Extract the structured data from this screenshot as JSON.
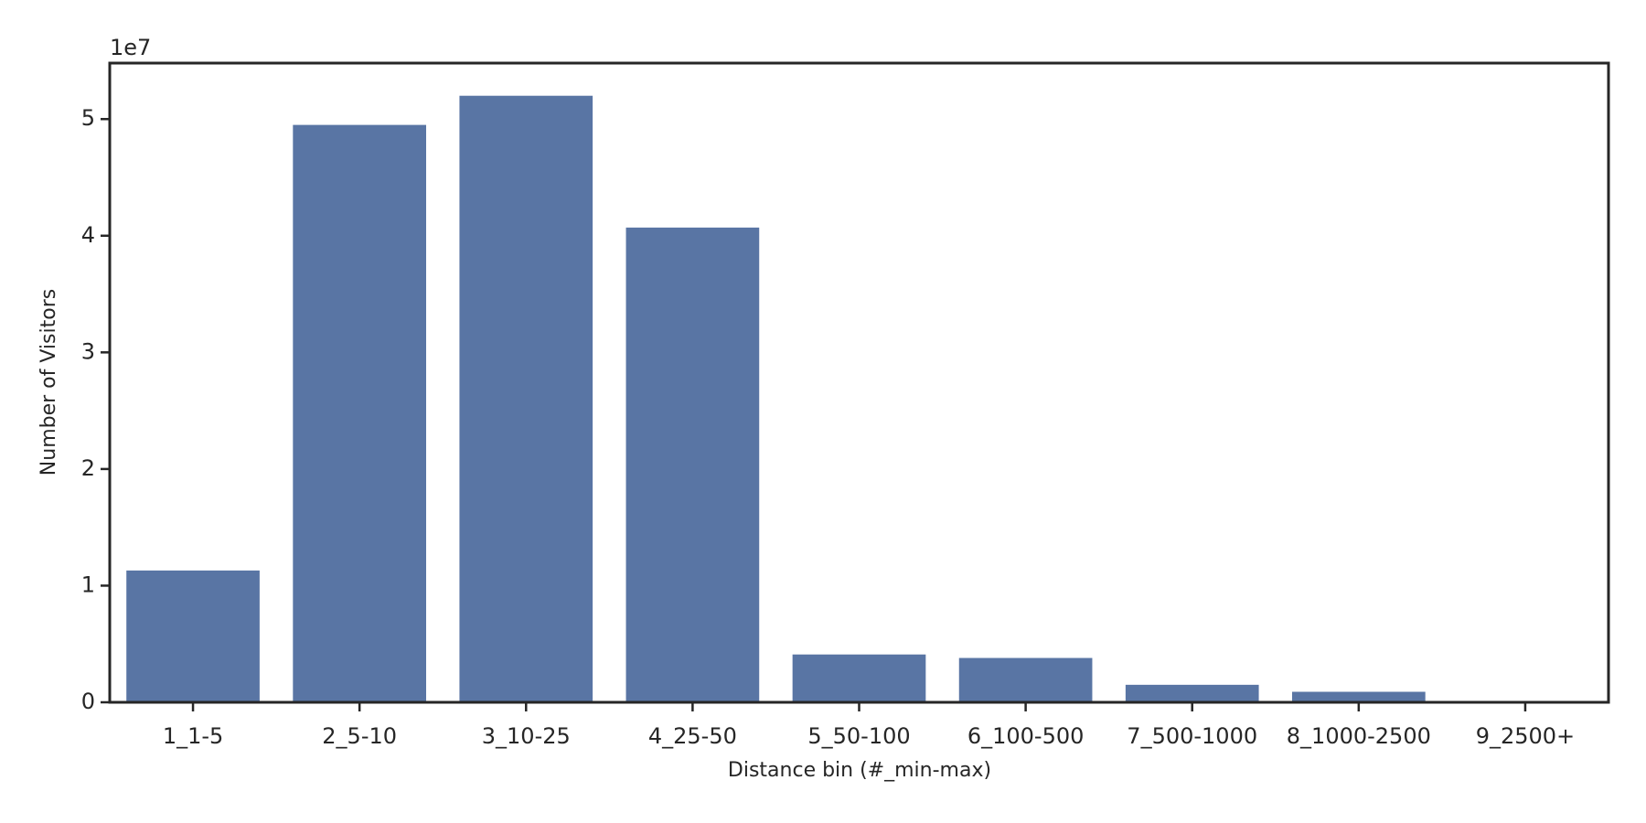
{
  "chart_data": {
    "type": "bar",
    "x_label": "Distance bin (#_min-max)",
    "y_label": "Number of Visitors",
    "y_offset_label": "1e7",
    "categories": [
      "1_1-5",
      "2_5-10",
      "3_10-25",
      "4_25-50",
      "5_50-100",
      "6_100-500",
      "7_500-1000",
      "8_1000-2500",
      "9_2500+"
    ],
    "values": [
      1.13,
      4.95,
      5.2,
      4.07,
      0.41,
      0.38,
      0.15,
      0.09,
      0
    ],
    "color": "#5975a4",
    "ylim": [
      0,
      5.48
    ],
    "yticks": [
      0,
      1,
      2,
      3,
      4,
      5
    ],
    "grid": false
  }
}
